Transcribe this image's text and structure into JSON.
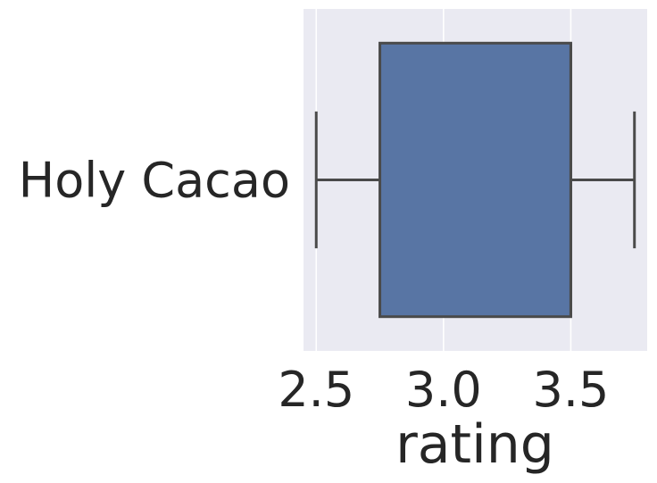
{
  "chart_data": {
    "type": "box",
    "orientation": "horizontal",
    "categories": [
      "Holy Cacao"
    ],
    "boxes": [
      {
        "category": "Holy Cacao",
        "min": 2.5,
        "q1": 2.75,
        "median": 3.5,
        "q3": 3.5,
        "max": 3.75,
        "color": "#5875a4"
      }
    ],
    "xlabel": "rating",
    "xlim": [
      2.45,
      3.8
    ],
    "xticks": [
      2.5,
      3.0,
      3.5
    ],
    "xtick_labels": [
      "2.5",
      "3.0",
      "3.5"
    ],
    "grid": true,
    "style": {
      "plot_bg": "#eaeaf2",
      "grid_color": "#ffffff",
      "line_color": "#4a4a4a"
    }
  }
}
